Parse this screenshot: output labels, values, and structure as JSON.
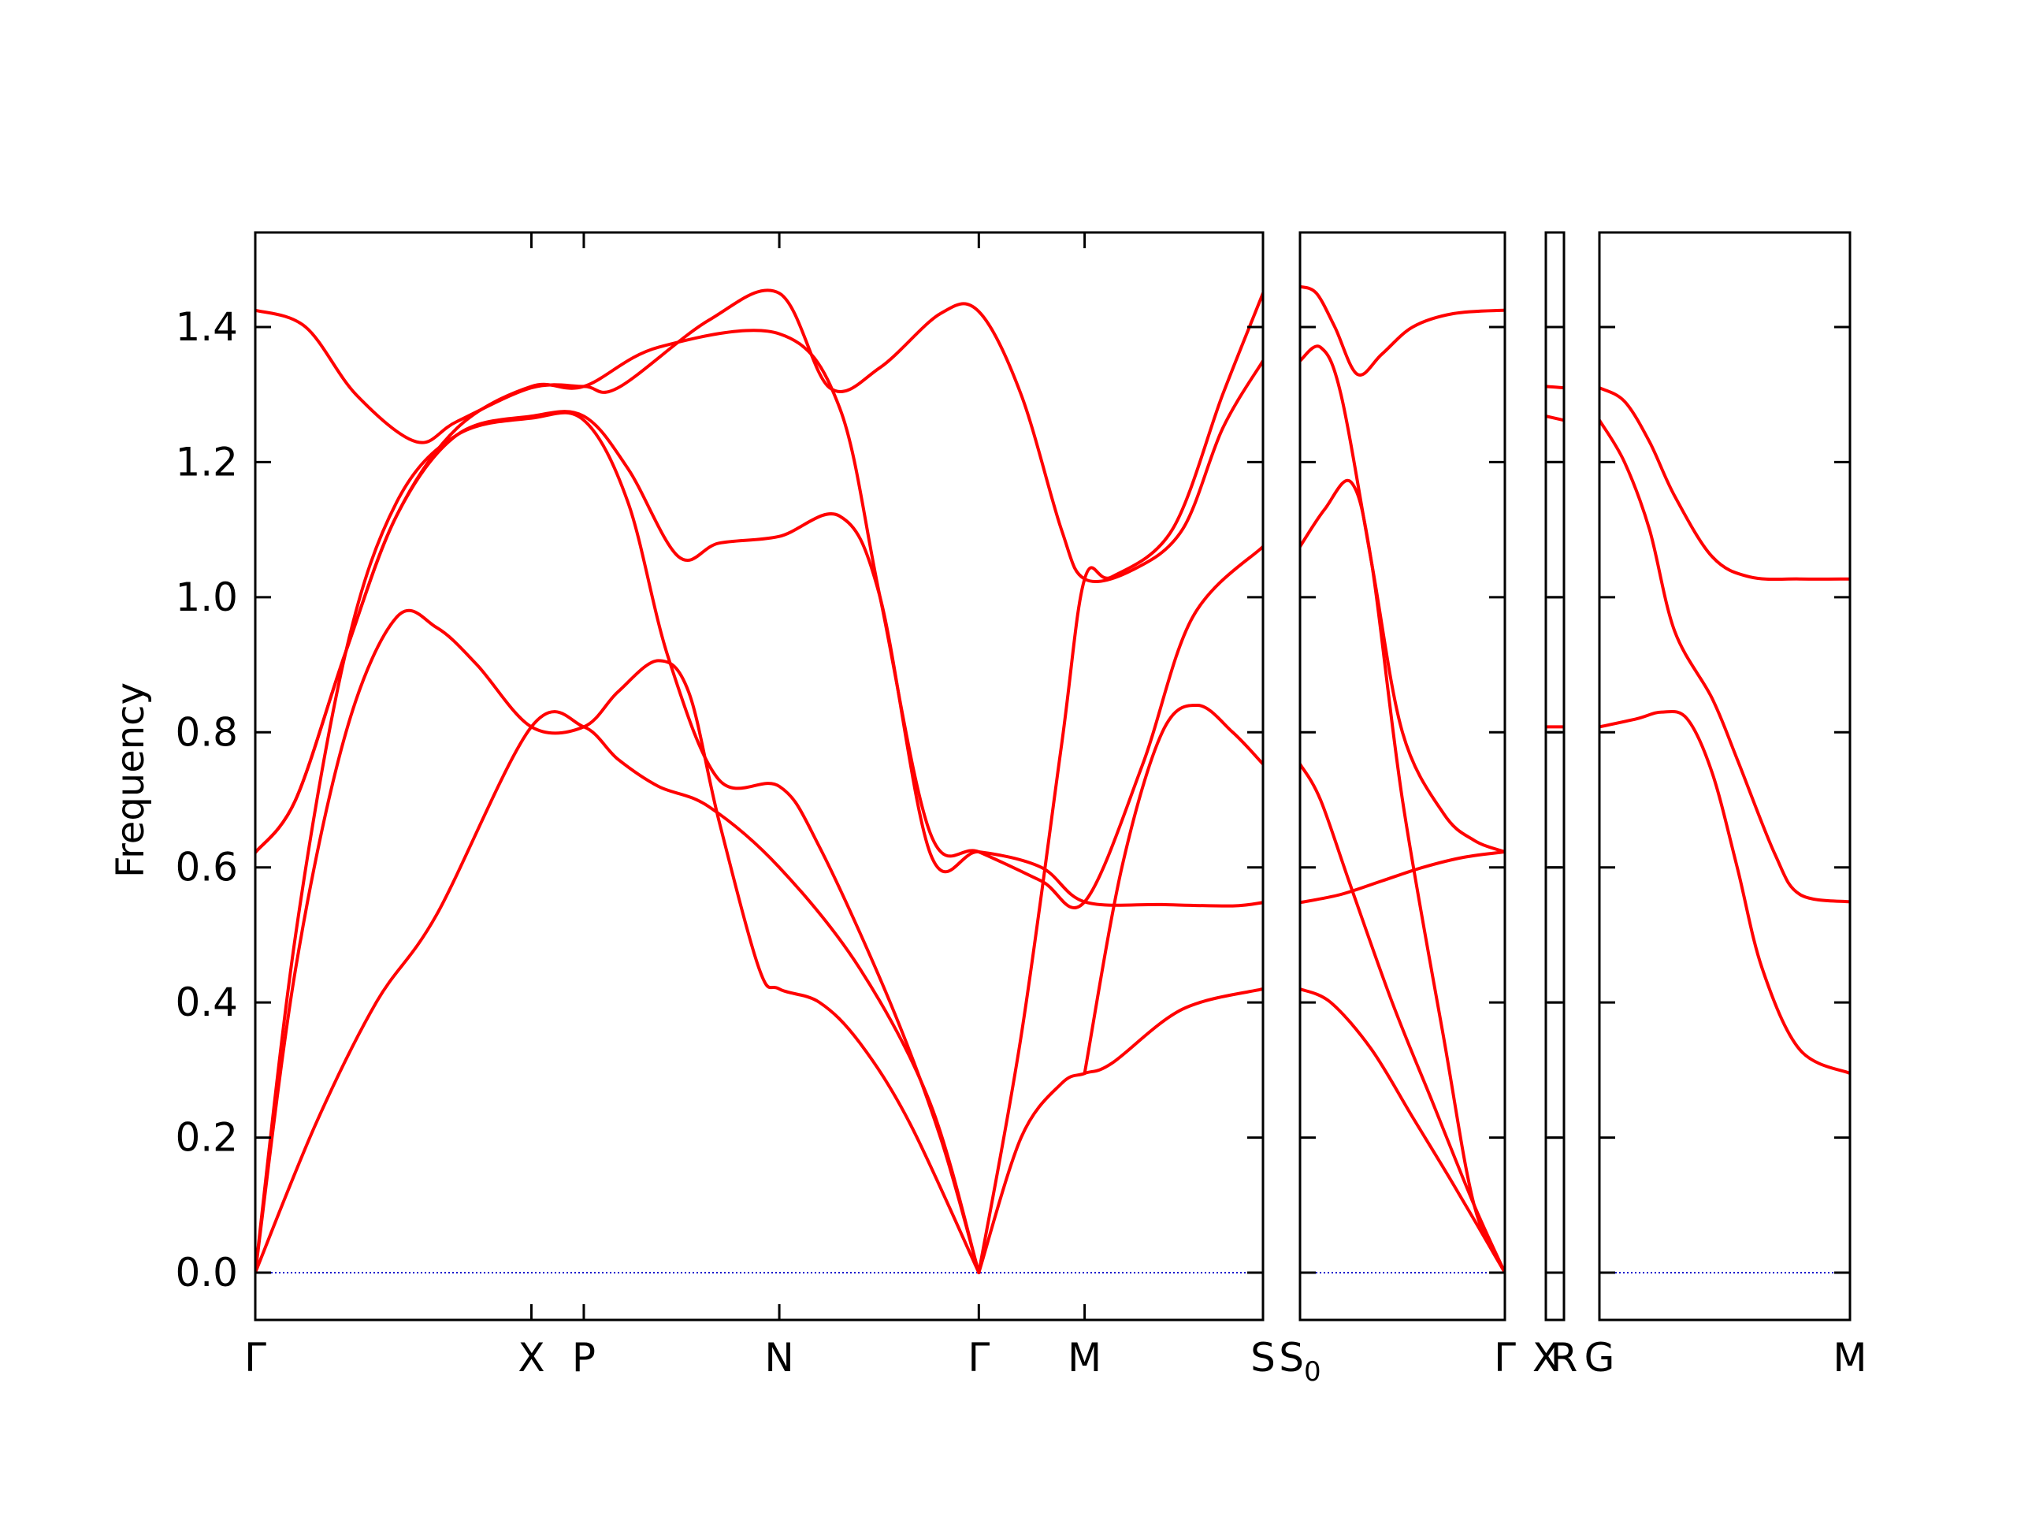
{
  "chart_data": {
    "type": "line",
    "ylabel": "Frequency",
    "ylim": [
      -0.07,
      1.54
    ],
    "yticks": [
      0.0,
      0.2,
      0.4,
      0.6,
      0.8,
      1.0,
      1.2,
      1.4
    ],
    "ytick_labels": [
      "0.0",
      "0.2",
      "0.4",
      "0.6",
      "0.8",
      "1.0",
      "1.2",
      "1.4"
    ],
    "colors": {
      "bands": "#ff0000",
      "zero_line": "#0000cc",
      "frame": "#000000"
    },
    "grid": false,
    "legend": "none",
    "panels": [
      {
        "id": "p1",
        "labels": [
          "Γ",
          "X",
          "P",
          "N",
          "Γ",
          "M",
          "S"
        ],
        "positions": [
          0,
          0.274,
          0.326,
          0.52,
          0.718,
          0.823,
          1.0
        ],
        "bands": [
          [
            [
              0,
              0
            ],
            [
              0.06,
              0.22
            ],
            [
              0.12,
              0.4
            ],
            [
              0.18,
              0.53
            ],
            [
              0.274,
              0.808
            ],
            [
              0.326,
              0.808
            ],
            [
              0.36,
              0.76
            ],
            [
              0.4,
              0.72
            ],
            [
              0.45,
              0.69
            ],
            [
              0.52,
              0.6
            ],
            [
              0.6,
              0.45
            ],
            [
              0.67,
              0.25
            ],
            [
              0.718,
              0.0
            ]
          ],
          [
            [
              0,
              0
            ],
            [
              0.04,
              0.45
            ],
            [
              0.09,
              0.8
            ],
            [
              0.14,
              0.97
            ],
            [
              0.18,
              0.955
            ],
            [
              0.22,
              0.9
            ],
            [
              0.274,
              0.808
            ],
            [
              0.326,
              0.808
            ],
            [
              0.36,
              0.86
            ],
            [
              0.4,
              0.906
            ],
            [
              0.43,
              0.86
            ],
            [
              0.46,
              0.67
            ],
            [
              0.5,
              0.45
            ],
            [
              0.52,
              0.42
            ],
            [
              0.56,
              0.4
            ],
            [
              0.6,
              0.34
            ],
            [
              0.65,
              0.22
            ],
            [
              0.718,
              0.0
            ]
          ],
          [
            [
              0,
              0
            ],
            [
              0.04,
              0.5
            ],
            [
              0.09,
              0.92
            ],
            [
              0.14,
              1.14
            ],
            [
              0.2,
              1.24
            ],
            [
              0.274,
              1.265
            ],
            [
              0.326,
              1.262
            ],
            [
              0.37,
              1.14
            ],
            [
              0.41,
              0.91
            ],
            [
              0.46,
              0.73
            ],
            [
              0.52,
              0.72
            ],
            [
              0.56,
              0.63
            ],
            [
              0.63,
              0.4
            ],
            [
              0.68,
              0.2
            ],
            [
              0.718,
              0.0
            ]
          ],
          [
            [
              0,
              0.622
            ],
            [
              0.04,
              0.7
            ],
            [
              0.09,
              0.92
            ],
            [
              0.14,
              1.12
            ],
            [
              0.2,
              1.24
            ],
            [
              0.274,
              1.268
            ],
            [
              0.326,
              1.268
            ],
            [
              0.37,
              1.19
            ],
            [
              0.42,
              1.06
            ],
            [
              0.46,
              1.08
            ],
            [
              0.52,
              1.09
            ],
            [
              0.58,
              1.12
            ],
            [
              0.62,
              1.0
            ],
            [
              0.67,
              0.62
            ],
            [
              0.718,
              0.623
            ],
            [
              0.78,
              0.6
            ],
            [
              0.823,
              0.549
            ],
            [
              0.9,
              0.545
            ],
            [
              0.97,
              0.543
            ],
            [
              1.0,
              0.548
            ]
          ],
          [
            [
              0,
              0.622
            ],
            [
              0.04,
              0.7
            ],
            [
              0.09,
              0.92
            ],
            [
              0.14,
              1.12
            ],
            [
              0.2,
              1.25
            ],
            [
              0.274,
              1.312
            ],
            [
              0.326,
              1.312
            ],
            [
              0.4,
              1.37
            ],
            [
              0.52,
              1.39
            ],
            [
              0.58,
              1.28
            ],
            [
              0.62,
              1.0
            ],
            [
              0.67,
              0.65
            ],
            [
              0.718,
              0.623
            ],
            [
              0.78,
              0.58
            ],
            [
              0.823,
              0.549
            ],
            [
              0.88,
              0.75
            ],
            [
              0.93,
              0.97
            ],
            [
              1.0,
              1.075
            ]
          ],
          [
            [
              0,
              1.425
            ],
            [
              0.05,
              1.4
            ],
            [
              0.1,
              1.3
            ],
            [
              0.16,
              1.23
            ],
            [
              0.2,
              1.26
            ],
            [
              0.274,
              1.31
            ],
            [
              0.326,
              1.312
            ],
            [
              0.36,
              1.31
            ],
            [
              0.45,
              1.41
            ],
            [
              0.52,
              1.45
            ],
            [
              0.57,
              1.31
            ],
            [
              0.62,
              1.34
            ],
            [
              0.68,
              1.42
            ],
            [
              0.718,
              1.423
            ],
            [
              0.76,
              1.3
            ],
            [
              0.8,
              1.1
            ],
            [
              0.823,
              1.027
            ],
            [
              0.87,
              1.04
            ],
            [
              0.92,
              1.1
            ],
            [
              0.96,
              1.25
            ],
            [
              1.0,
              1.35
            ]
          ],
          [
            [
              0.718,
              0.0
            ],
            [
              0.76,
              0.2
            ],
            [
              0.8,
              0.28
            ],
            [
              0.823,
              0.295
            ],
            [
              0.85,
              0.31
            ],
            [
              0.92,
              0.39
            ],
            [
              1.0,
              0.42
            ]
          ],
          [
            [
              0.718,
              0.0
            ],
            [
              0.76,
              0.35
            ],
            [
              0.8,
              0.78
            ],
            [
              0.823,
              1.027
            ],
            [
              0.85,
              1.03
            ],
            [
              0.91,
              1.1
            ],
            [
              0.96,
              1.3
            ],
            [
              1.0,
              1.45
            ]
          ],
          [
            [
              0.823,
              0.295
            ],
            [
              0.86,
              0.6
            ],
            [
              0.9,
              0.8
            ],
            [
              0.935,
              0.84
            ],
            [
              0.97,
              0.8
            ],
            [
              1.0,
              0.753
            ]
          ]
        ]
      },
      {
        "id": "p2",
        "labels": [
          "S₀",
          "Γ"
        ],
        "label_base": [
          "S",
          "Γ"
        ],
        "label_sub": [
          "0",
          ""
        ],
        "positions": [
          0,
          1.0
        ],
        "bands": [
          [
            [
              0,
              1.46
            ],
            [
              0.08,
              1.45
            ],
            [
              0.17,
              1.4
            ],
            [
              0.28,
              1.33
            ],
            [
              0.4,
              1.36
            ],
            [
              0.55,
              1.4
            ],
            [
              0.75,
              1.42
            ],
            [
              1.0,
              1.425
            ]
          ],
          [
            [
              0,
              1.35
            ],
            [
              0.1,
              1.37
            ],
            [
              0.2,
              1.3
            ],
            [
              0.35,
              1.05
            ],
            [
              0.5,
              0.8
            ],
            [
              0.7,
              0.68
            ],
            [
              0.85,
              0.64
            ],
            [
              1.0,
              0.623
            ]
          ],
          [
            [
              0,
              1.075
            ],
            [
              0.12,
              1.13
            ],
            [
              0.25,
              1.17
            ],
            [
              0.35,
              1.05
            ],
            [
              0.5,
              0.7
            ],
            [
              0.7,
              0.35
            ],
            [
              0.85,
              0.1
            ],
            [
              1.0,
              0.0
            ]
          ],
          [
            [
              0,
              0.753
            ],
            [
              0.1,
              0.7
            ],
            [
              0.25,
              0.57
            ],
            [
              0.45,
              0.4
            ],
            [
              0.65,
              0.25
            ],
            [
              0.85,
              0.1
            ],
            [
              1.0,
              0.0
            ]
          ],
          [
            [
              0,
              0.548
            ],
            [
              0.2,
              0.56
            ],
            [
              0.4,
              0.58
            ],
            [
              0.6,
              0.6
            ],
            [
              0.8,
              0.615
            ],
            [
              1.0,
              0.623
            ]
          ],
          [
            [
              0,
              0.42
            ],
            [
              0.15,
              0.4
            ],
            [
              0.35,
              0.33
            ],
            [
              0.55,
              0.23
            ],
            [
              0.75,
              0.13
            ],
            [
              1.0,
              0.0
            ]
          ]
        ]
      },
      {
        "id": "p3",
        "labels": [
          "X",
          "R"
        ],
        "positions": [
          0,
          1.0
        ],
        "bands": [
          [
            [
              0,
              1.312
            ],
            [
              1.0,
              1.31
            ]
          ],
          [
            [
              0,
              1.268
            ],
            [
              1.0,
              1.262
            ]
          ],
          [
            [
              0,
              0.808
            ],
            [
              1.0,
              0.808
            ]
          ]
        ]
      },
      {
        "id": "p4",
        "labels": [
          "G",
          "M"
        ],
        "positions": [
          0,
          1.0
        ],
        "bands": [
          [
            [
              0,
              1.31
            ],
            [
              0.1,
              1.29
            ],
            [
              0.2,
              1.23
            ],
            [
              0.3,
              1.15
            ],
            [
              0.45,
              1.06
            ],
            [
              0.6,
              1.03
            ],
            [
              0.8,
              1.027
            ],
            [
              1.0,
              1.027
            ]
          ],
          [
            [
              0,
              1.262
            ],
            [
              0.1,
              1.2
            ],
            [
              0.2,
              1.1
            ],
            [
              0.3,
              0.95
            ],
            [
              0.45,
              0.85
            ],
            [
              0.55,
              0.76
            ],
            [
              0.7,
              0.62
            ],
            [
              0.8,
              0.56
            ],
            [
              1.0,
              0.549
            ]
          ],
          [
            [
              0,
              0.808
            ],
            [
              0.15,
              0.82
            ],
            [
              0.25,
              0.83
            ],
            [
              0.35,
              0.82
            ],
            [
              0.45,
              0.74
            ],
            [
              0.55,
              0.6
            ],
            [
              0.65,
              0.45
            ],
            [
              0.8,
              0.33
            ],
            [
              1.0,
              0.295
            ]
          ]
        ]
      }
    ]
  }
}
